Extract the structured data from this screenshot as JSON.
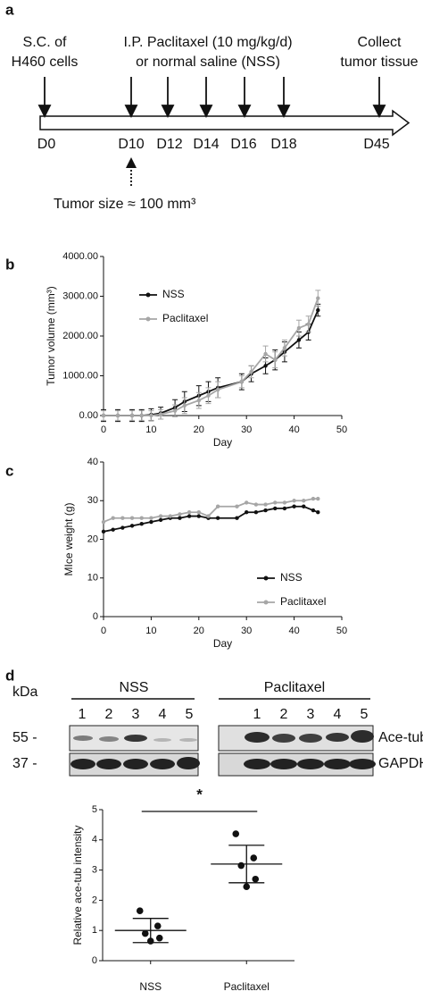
{
  "timeline": {
    "panel": "a",
    "events": [
      [
        "S.C. of",
        "H460 cells"
      ],
      [
        "I.P. Paclitaxel (10 mg/kg/d)",
        "or normal saline (NSS)"
      ],
      [
        "Collect",
        "tumor tissue"
      ]
    ],
    "days": [
      "D0",
      "D10",
      "D12",
      "D14",
      "D16",
      "D18",
      "D45"
    ],
    "note": "Tumor size ≈ 100 mm³"
  },
  "chart_data": [
    {
      "type": "line",
      "panel": "b",
      "xlabel": "Day",
      "ylabel": "Tumor volume (mm³)",
      "x": [
        0,
        3,
        6,
        8,
        10,
        12,
        15,
        17,
        20,
        22,
        24,
        29,
        31,
        34,
        36,
        38,
        41,
        43,
        45
      ],
      "series": [
        {
          "name": "NSS",
          "color": "#111111",
          "values": [
            0,
            0,
            0,
            0,
            20,
            60,
            200,
            350,
            500,
            600,
            700,
            850,
            1050,
            1250,
            1400,
            1600,
            1900,
            2100,
            2650
          ],
          "errors": [
            150,
            150,
            150,
            150,
            150,
            150,
            200,
            250,
            250,
            250,
            250,
            200,
            200,
            200,
            250,
            250,
            200,
            200,
            150
          ]
        },
        {
          "name": "Paclitaxel",
          "color": "#a6a6a6",
          "values": [
            0,
            0,
            0,
            0,
            0,
            30,
            120,
            250,
            380,
            500,
            650,
            850,
            1100,
            1550,
            1400,
            1700,
            2200,
            2300,
            2950
          ],
          "errors": [
            120,
            120,
            120,
            120,
            120,
            120,
            150,
            200,
            200,
            200,
            200,
            150,
            150,
            200,
            200,
            200,
            200,
            200,
            200
          ]
        }
      ],
      "xlim": [
        0,
        50
      ],
      "xticks": [
        0,
        10,
        20,
        30,
        40,
        50
      ],
      "ylim": [
        0,
        4000
      ],
      "yticks": [
        {
          "value": 0,
          "label": "0.00"
        },
        {
          "value": 1000,
          "label": "1000.00"
        },
        {
          "value": 2000,
          "label": "2000.00"
        },
        {
          "value": 3000,
          "label": "3000.00"
        },
        {
          "value": 4000,
          "label": "4000.00"
        }
      ],
      "legend": "upper left"
    },
    {
      "type": "line",
      "panel": "c",
      "xlabel": "Day",
      "ylabel": "MIce weight (g)",
      "x": [
        0,
        2,
        4,
        6,
        8,
        10,
        12,
        14,
        16,
        18,
        20,
        22,
        24,
        28,
        30,
        32,
        34,
        36,
        38,
        40,
        42,
        44,
        45
      ],
      "series": [
        {
          "name": "NSS",
          "color": "#111111",
          "values": [
            22,
            22.5,
            23,
            23.5,
            24,
            24.5,
            25,
            25.5,
            25.5,
            26,
            26,
            25.5,
            25.5,
            25.5,
            27,
            27,
            27.5,
            28,
            28,
            28.5,
            28.5,
            27.5,
            27
          ]
        },
        {
          "name": "Paclitaxel",
          "color": "#a6a6a6",
          "values": [
            24.5,
            25.5,
            25.5,
            25.5,
            25.5,
            25.5,
            26,
            26,
            26.5,
            27,
            27,
            26,
            28.5,
            28.5,
            29.5,
            29,
            29,
            29.5,
            29.5,
            30,
            30,
            30.5,
            30.5
          ]
        }
      ],
      "xlim": [
        0,
        50
      ],
      "xticks": [
        0,
        10,
        20,
        30,
        40,
        50
      ],
      "ylim": [
        0,
        40
      ],
      "yticks": [
        0,
        10,
        20,
        30,
        40
      ],
      "legend": "lower right"
    },
    {
      "type": "dot",
      "ylabel": "Relative ace-tub intensity",
      "annotation": "*",
      "categories": [
        "NSS",
        "Paclitaxel"
      ],
      "groups": [
        {
          "values": [
            1.65,
            1.15,
            0.9,
            0.75,
            0.65
          ],
          "mean": 1.0,
          "sd": 0.4
        },
        {
          "values": [
            4.2,
            3.4,
            3.15,
            2.7,
            2.45
          ],
          "mean": 3.2,
          "sd": 0.62
        }
      ],
      "ylim": [
        0,
        5
      ],
      "yticks": [
        0,
        1,
        2,
        3,
        4,
        5
      ]
    }
  ],
  "blot": {
    "panel": "d",
    "unit": "kDa",
    "groups": [
      "NSS",
      "Paclitaxel"
    ],
    "lanes": [
      "1",
      "2",
      "3",
      "4",
      "5"
    ],
    "markers": [
      "55 -",
      "37 -"
    ],
    "proteins": [
      "Ace-tub",
      "GAPDH"
    ]
  }
}
